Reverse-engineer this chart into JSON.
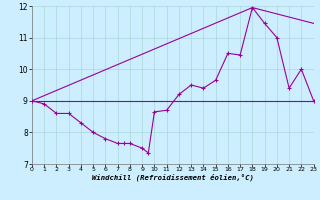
{
  "background_color": "#cceeff",
  "grid_color": "#aad8d8",
  "line_color": "#990099",
  "xlabel": "Windchill (Refroidissement éolien,°C)",
  "xlim": [
    0,
    23
  ],
  "ylim": [
    7,
    12
  ],
  "yticks": [
    7,
    8,
    9,
    10,
    11,
    12
  ],
  "xticks": [
    0,
    1,
    2,
    3,
    4,
    5,
    6,
    7,
    8,
    9,
    10,
    11,
    12,
    13,
    14,
    15,
    16,
    17,
    18,
    19,
    20,
    21,
    22,
    23
  ],
  "main_x": [
    0,
    1,
    2,
    3,
    4,
    5,
    6,
    7,
    7.5,
    8,
    9,
    9.5,
    10,
    11,
    12,
    13,
    14,
    15,
    16,
    17,
    18,
    19,
    20,
    21,
    22,
    23
  ],
  "main_y": [
    9.0,
    8.9,
    8.6,
    8.6,
    8.3,
    8.0,
    7.8,
    7.65,
    7.65,
    7.65,
    7.5,
    7.35,
    8.65,
    8.7,
    9.2,
    9.5,
    9.4,
    9.65,
    10.5,
    10.45,
    11.95,
    11.45,
    11.0,
    9.4,
    10.0,
    9.0
  ],
  "line2_x": [
    0,
    23
  ],
  "line2_y": [
    9.0,
    9.0
  ],
  "line3_x": [
    0,
    18,
    23
  ],
  "line3_y": [
    9.0,
    11.95,
    11.45
  ]
}
